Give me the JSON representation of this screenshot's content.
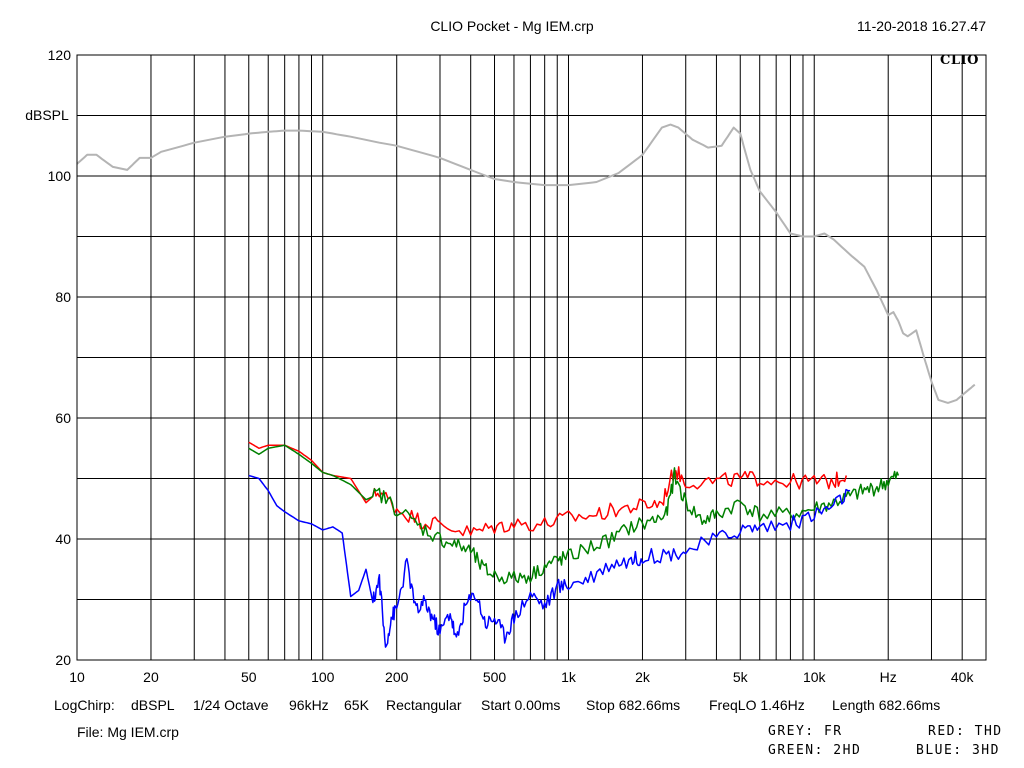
{
  "header": {
    "title": "CLIO Pocket - Mg IEM.crp",
    "timestamp": "11-20-2018 16.27.47",
    "brand": "CLIO"
  },
  "footer": {
    "settings": [
      "LogChirp:",
      "dBSPL",
      "1/24 Octave",
      "96kHz",
      "65K",
      "Rectangular",
      "Start 0.00ms",
      "Stop 682.66ms",
      "FreqLO 1.46Hz",
      "Length 682.66ms"
    ],
    "file": "File: Mg IEM.crp",
    "legend": {
      "grey": "GREY: FR",
      "red": "RED: THD",
      "green": "GREEN: 2HD",
      "blue": "BLUE: 3HD"
    }
  },
  "chart_data": {
    "type": "line",
    "ylabel": "dBSPL",
    "xscale": "log",
    "xlim": [
      10,
      50000
    ],
    "ylim": [
      20,
      120
    ],
    "y_ticks": [
      20,
      40,
      60,
      80,
      100,
      120
    ],
    "x_ticks": [
      {
        "value": 10,
        "label": "10"
      },
      {
        "value": 20,
        "label": "20"
      },
      {
        "value": 50,
        "label": "50"
      },
      {
        "value": 100,
        "label": "100"
      },
      {
        "value": 200,
        "label": "200"
      },
      {
        "value": 500,
        "label": "500"
      },
      {
        "value": 1000,
        "label": "1k"
      },
      {
        "value": 2000,
        "label": "2k"
      },
      {
        "value": 5000,
        "label": "5k"
      },
      {
        "value": 10000,
        "label": "10k"
      },
      {
        "value": 20000,
        "label": "Hz"
      },
      {
        "value": 40000,
        "label": "40k"
      }
    ],
    "grid": true,
    "series": [
      {
        "name": "FR",
        "color": "#b4b4b4",
        "points": [
          [
            10,
            102
          ],
          [
            11,
            103.5
          ],
          [
            12,
            103.5
          ],
          [
            14,
            101.5
          ],
          [
            16,
            101
          ],
          [
            18,
            103
          ],
          [
            20,
            103
          ],
          [
            22,
            104
          ],
          [
            30,
            105.5
          ],
          [
            40,
            106.5
          ],
          [
            50,
            107
          ],
          [
            60,
            107.3
          ],
          [
            70,
            107.5
          ],
          [
            80,
            107.5
          ],
          [
            100,
            107.3
          ],
          [
            130,
            106.5
          ],
          [
            170,
            105.5
          ],
          [
            200,
            105
          ],
          [
            300,
            103
          ],
          [
            400,
            101
          ],
          [
            500,
            99.5
          ],
          [
            600,
            99
          ],
          [
            800,
            98.5
          ],
          [
            1000,
            98.5
          ],
          [
            1300,
            99
          ],
          [
            1600,
            100.5
          ],
          [
            2000,
            103.5
          ],
          [
            2400,
            108
          ],
          [
            2600,
            108.5
          ],
          [
            2800,
            108
          ],
          [
            3200,
            106
          ],
          [
            3700,
            104.7
          ],
          [
            4200,
            105
          ],
          [
            4700,
            108
          ],
          [
            5000,
            107
          ],
          [
            5500,
            101
          ],
          [
            6000,
            97.5
          ],
          [
            7000,
            94
          ],
          [
            8000,
            90.5
          ],
          [
            9000,
            90
          ],
          [
            10000,
            90
          ],
          [
            11000,
            90.5
          ],
          [
            12000,
            89.5
          ],
          [
            14000,
            87
          ],
          [
            16000,
            85
          ],
          [
            18000,
            81
          ],
          [
            20000,
            77
          ],
          [
            21000,
            77.5
          ],
          [
            22000,
            76
          ],
          [
            23000,
            74
          ],
          [
            24000,
            73.5
          ],
          [
            25000,
            74
          ],
          [
            26000,
            74.5
          ],
          [
            28000,
            70
          ],
          [
            30000,
            66
          ],
          [
            32000,
            63
          ],
          [
            35000,
            62.5
          ],
          [
            38000,
            63
          ],
          [
            42000,
            64.5
          ],
          [
            45000,
            65.5
          ]
        ]
      },
      {
        "name": "THD",
        "color": "#ff0000",
        "points": [
          [
            50,
            56
          ],
          [
            55,
            55
          ],
          [
            60,
            55.5
          ],
          [
            70,
            55.5
          ],
          [
            80,
            54.5
          ],
          [
            90,
            53
          ],
          [
            100,
            51
          ],
          [
            110,
            50.5
          ],
          [
            130,
            50
          ],
          [
            150,
            46
          ],
          [
            170,
            48
          ],
          [
            200,
            45
          ],
          [
            250,
            43
          ],
          [
            300,
            42.5
          ],
          [
            400,
            41
          ],
          [
            500,
            42
          ],
          [
            600,
            42.5
          ],
          [
            800,
            42.5
          ],
          [
            1000,
            43.5
          ],
          [
            1300,
            44
          ],
          [
            1600,
            45
          ],
          [
            2000,
            45.5
          ],
          [
            2400,
            46
          ],
          [
            2700,
            51.5
          ],
          [
            3000,
            49.5
          ],
          [
            4000,
            49.5
          ],
          [
            5000,
            50
          ],
          [
            6000,
            50
          ],
          [
            8000,
            49.5
          ],
          [
            10000,
            49.5
          ],
          [
            12000,
            49.5
          ],
          [
            13500,
            50.5
          ]
        ]
      },
      {
        "name": "2HD",
        "color": "#008000",
        "points": [
          [
            50,
            55
          ],
          [
            55,
            54
          ],
          [
            60,
            55
          ],
          [
            70,
            55.5
          ],
          [
            80,
            54
          ],
          [
            90,
            52.5
          ],
          [
            100,
            51
          ],
          [
            110,
            50.5
          ],
          [
            130,
            49
          ],
          [
            150,
            46.5
          ],
          [
            170,
            47.5
          ],
          [
            200,
            45
          ],
          [
            250,
            42
          ],
          [
            300,
            40
          ],
          [
            350,
            39
          ],
          [
            400,
            38
          ],
          [
            450,
            35
          ],
          [
            500,
            34
          ],
          [
            600,
            33.5
          ],
          [
            700,
            34
          ],
          [
            800,
            35.5
          ],
          [
            900,
            36.5
          ],
          [
            1000,
            37
          ],
          [
            1200,
            38.5
          ],
          [
            1500,
            40
          ],
          [
            1800,
            42
          ],
          [
            2200,
            43
          ],
          [
            2500,
            44
          ],
          [
            2700,
            50.5
          ],
          [
            3000,
            46
          ],
          [
            3500,
            43
          ],
          [
            4000,
            44
          ],
          [
            5000,
            46
          ],
          [
            6000,
            44
          ],
          [
            8000,
            44
          ],
          [
            10000,
            45
          ],
          [
            12000,
            46
          ],
          [
            14000,
            47
          ],
          [
            16000,
            48
          ],
          [
            18000,
            48.5
          ],
          [
            20000,
            49.5
          ],
          [
            22000,
            50.5
          ]
        ]
      },
      {
        "name": "3HD",
        "color": "#0000ff",
        "points": [
          [
            50,
            50.5
          ],
          [
            55,
            50
          ],
          [
            60,
            48
          ],
          [
            65,
            45.5
          ],
          [
            70,
            44.5
          ],
          [
            80,
            43
          ],
          [
            90,
            42.5
          ],
          [
            100,
            41.5
          ],
          [
            110,
            42
          ],
          [
            120,
            41
          ],
          [
            130,
            30.5
          ],
          [
            140,
            31.5
          ],
          [
            150,
            35
          ],
          [
            160,
            29.5
          ],
          [
            170,
            33.5
          ],
          [
            180,
            22
          ],
          [
            190,
            27
          ],
          [
            200,
            28.5
          ],
          [
            220,
            36
          ],
          [
            240,
            28
          ],
          [
            260,
            29.5
          ],
          [
            280,
            27
          ],
          [
            300,
            24.5
          ],
          [
            330,
            28
          ],
          [
            350,
            23
          ],
          [
            380,
            29
          ],
          [
            420,
            31
          ],
          [
            460,
            26
          ],
          [
            500,
            27
          ],
          [
            550,
            24
          ],
          [
            600,
            27
          ],
          [
            700,
            31
          ],
          [
            800,
            29
          ],
          [
            900,
            32
          ],
          [
            1000,
            32.5
          ],
          [
            1200,
            33.5
          ],
          [
            1500,
            36
          ],
          [
            1800,
            36.5
          ],
          [
            2000,
            37
          ],
          [
            2500,
            37.5
          ],
          [
            3000,
            38
          ],
          [
            4000,
            40
          ],
          [
            5000,
            41.5
          ],
          [
            6000,
            42
          ],
          [
            8000,
            42.5
          ],
          [
            10000,
            44
          ],
          [
            12000,
            45.5
          ],
          [
            14000,
            48
          ]
        ]
      }
    ]
  }
}
